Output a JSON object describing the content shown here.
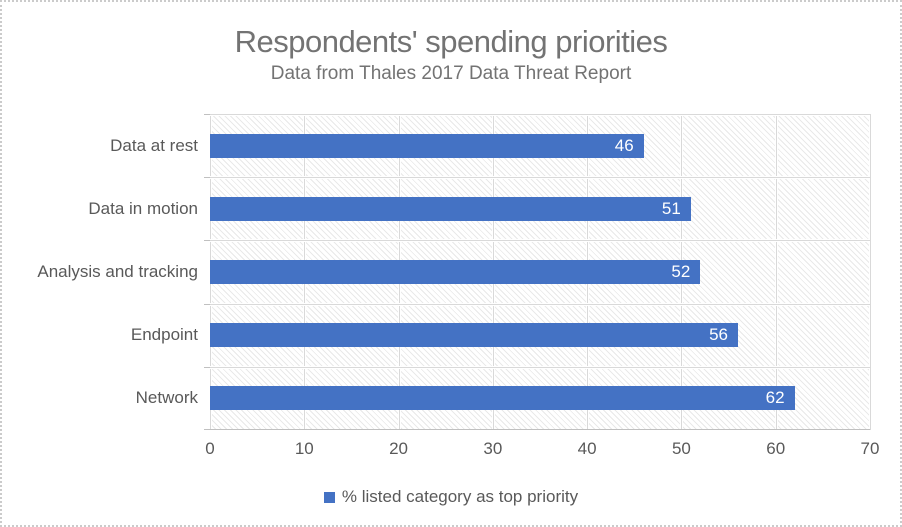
{
  "title": "Respondents' spending priorities",
  "subtitle": "Data from Thales 2017 Data Threat Report",
  "legend": {
    "label": "% listed category as top priority"
  },
  "chart_data": {
    "type": "bar",
    "orientation": "horizontal",
    "title": "Respondents' spending priorities",
    "subtitle": "Data from Thales 2017 Data Threat Report",
    "categories": [
      "Data at rest",
      "Data in motion",
      "Analysis and tracking",
      "Endpoint",
      "Network"
    ],
    "values": [
      46,
      51,
      52,
      56,
      62
    ],
    "series_name": "% listed category as top priority",
    "xlabel": "",
    "ylabel": "",
    "xlim": [
      0,
      70
    ],
    "x_ticks": [
      0,
      10,
      20,
      30,
      40,
      50,
      60,
      70
    ],
    "grid": true,
    "legend_position": "bottom",
    "value_labels": "inside-end",
    "plot_fill_pattern": "light-diagonal-hatch"
  },
  "colors": {
    "bar": "#4472C4",
    "grid": "#D9D9D9",
    "axis_line": "#C0C0C0",
    "text": "#595959",
    "title_text": "#737373",
    "value_label_text": "#FFFFFF",
    "hatch": "#E9E9E9",
    "background": "#FFFFFF",
    "border": "#CBCBCB"
  }
}
